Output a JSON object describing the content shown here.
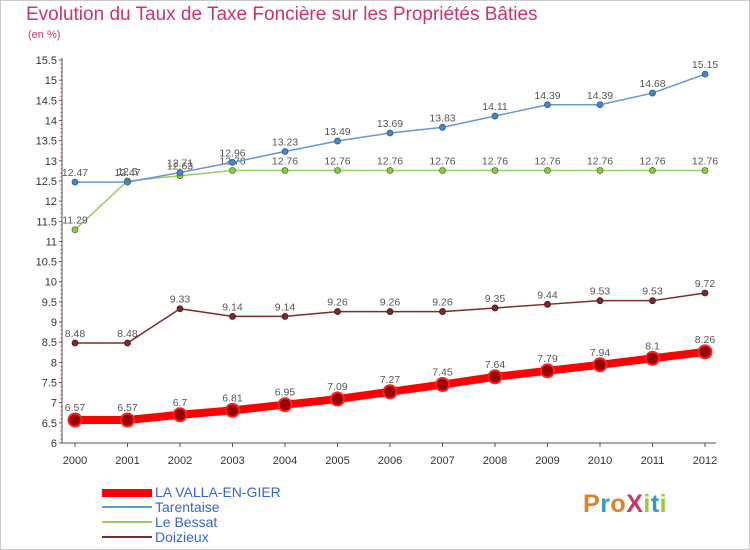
{
  "title": "Evolution du Taux de Taxe Foncière sur les Propriétés Bâties",
  "unit": "(en %)",
  "logo": {
    "text": "ProXiti",
    "letters": [
      "P",
      "r",
      "o",
      "X",
      "i",
      "t",
      "i"
    ],
    "colors": [
      "#e0802a",
      "#3399cc",
      "#e0802a",
      "#cc3366",
      "#99cc33",
      "#3399cc",
      "#99cc33"
    ]
  },
  "chart_data": {
    "type": "line",
    "title": "Evolution du Taux de Taxe Foncière sur les Propriétés Bâties",
    "ylabel": "(en %)",
    "x": [
      "2000",
      "2001",
      "2002",
      "2003",
      "2004",
      "2005",
      "2006",
      "2007",
      "2008",
      "2009",
      "2010",
      "2011",
      "2012"
    ],
    "ylim": [
      6,
      15.5
    ],
    "yticks": [
      "6",
      "6.5",
      "7",
      "7.5",
      "8",
      "8.5",
      "9",
      "9.5",
      "10",
      "10.5",
      "11",
      "11.5",
      "12",
      "12.5",
      "13",
      "13.5",
      "14",
      "14.5",
      "15",
      "15.5"
    ],
    "grid": false,
    "legend_position": "bottom-left",
    "series": [
      {
        "name": "LA VALLA-EN-GIER",
        "color": "#ff0000",
        "values": [
          6.57,
          6.57,
          6.7,
          6.81,
          6.95,
          7.09,
          7.27,
          7.45,
          7.64,
          7.79,
          7.94,
          8.1,
          8.26
        ],
        "labels": [
          "6.57",
          "6.57",
          "6.7",
          "6.81",
          "6.95",
          "7.09",
          "7.27",
          "7.45",
          "7.64",
          "7.79",
          "7.94",
          "8.1",
          "8.26"
        ]
      },
      {
        "name": "Tarentaise",
        "color": "#6699cc",
        "values": [
          12.47,
          12.47,
          12.71,
          12.96,
          13.23,
          13.49,
          13.69,
          13.83,
          14.11,
          14.39,
          14.39,
          14.68,
          15.15
        ],
        "labels": [
          "12.47",
          "12.47",
          "12.71",
          "12.96",
          "13.23",
          "13.49",
          "13.69",
          "13.83",
          "14.11",
          "14.39",
          "14.39",
          "14.68",
          "15.15"
        ]
      },
      {
        "name": "Le Bessat",
        "color": "#99cc66",
        "values": [
          11.29,
          12.5,
          12.63,
          12.76,
          12.76,
          12.76,
          12.76,
          12.76,
          12.76,
          12.76,
          12.76,
          12.76,
          12.76
        ],
        "labels": [
          "11.29",
          "12.5",
          "12.63",
          "12.76",
          "12.76",
          "12.76",
          "12.76",
          "12.76",
          "12.76",
          "12.76",
          "12.76",
          "12.76",
          "12.76"
        ]
      },
      {
        "name": "Doizieux",
        "color": "#7a2b2b",
        "values": [
          8.48,
          8.48,
          9.33,
          9.14,
          9.14,
          9.26,
          9.26,
          9.26,
          9.35,
          9.44,
          9.53,
          9.53,
          9.72
        ],
        "labels": [
          "8.48",
          "8.48",
          "9.33",
          "9.14",
          "9.14",
          "9.26",
          "9.26",
          "9.26",
          "9.35",
          "9.44",
          "9.53",
          "9.53",
          "9.72"
        ]
      }
    ]
  }
}
